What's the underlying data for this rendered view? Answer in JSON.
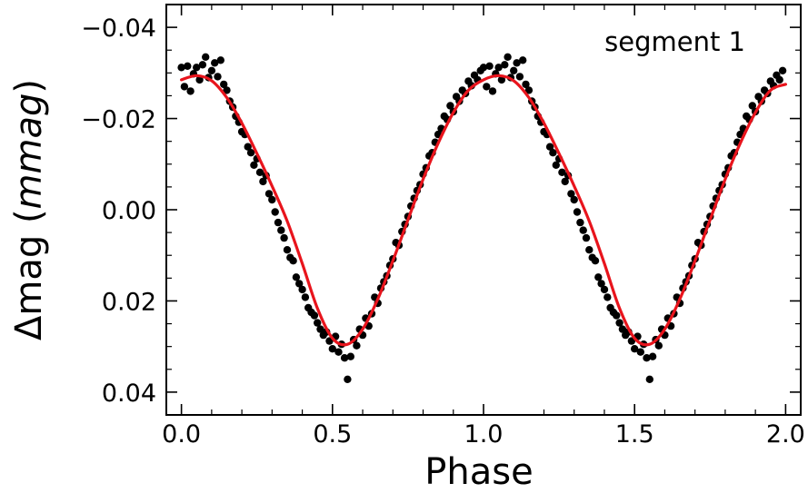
{
  "chart_data": {
    "type": "scatter",
    "xlabel": "Phase",
    "ylabel_prefix": "Δmag (",
    "ylabel_unit": "mmag",
    "ylabel_suffix": ")",
    "annotation": "segment 1",
    "xlim": [
      -0.05,
      2.05
    ],
    "ylim": [
      0.045,
      -0.045
    ],
    "y_inverted": true,
    "grid": false,
    "x_ticks": [
      0.0,
      0.5,
      1.0,
      1.5,
      2.0
    ],
    "x_tick_labels": [
      "0.0",
      "0.5",
      "1.0",
      "1.5",
      "2.0"
    ],
    "y_ticks": [
      -0.04,
      -0.02,
      0.0,
      0.02,
      0.04
    ],
    "y_tick_labels": [
      "−0.04",
      "−0.02",
      "0.00",
      "0.02",
      "0.04"
    ],
    "series": [
      {
        "kind": "points",
        "color": "#000000",
        "points": [
          [
            0.0,
            -0.0312
          ],
          [
            0.01,
            -0.027
          ],
          [
            0.02,
            -0.0315
          ],
          [
            0.03,
            -0.026
          ],
          [
            0.04,
            -0.0298
          ],
          [
            0.05,
            -0.0312
          ],
          [
            0.06,
            -0.0285
          ],
          [
            0.07,
            -0.0318
          ],
          [
            0.08,
            -0.0335
          ],
          [
            0.09,
            -0.029
          ],
          [
            0.1,
            -0.0305
          ],
          [
            0.11,
            -0.0322
          ],
          [
            0.12,
            -0.0292
          ],
          [
            0.13,
            -0.0328
          ],
          [
            0.14,
            -0.0275
          ],
          [
            0.15,
            -0.0262
          ],
          [
            0.16,
            -0.0238
          ],
          [
            0.17,
            -0.0225
          ],
          [
            0.18,
            -0.0205
          ],
          [
            0.19,
            -0.0192
          ],
          [
            0.2,
            -0.0171
          ],
          [
            0.21,
            -0.0165
          ],
          [
            0.22,
            -0.0138
          ],
          [
            0.23,
            -0.0125
          ],
          [
            0.24,
            -0.0098
          ],
          [
            0.25,
            -0.0112
          ],
          [
            0.26,
            -0.0082
          ],
          [
            0.27,
            -0.0062
          ],
          [
            0.28,
            -0.0075
          ],
          [
            0.29,
            -0.0035
          ],
          [
            0.3,
            -0.0022
          ],
          [
            0.31,
            0.0005
          ],
          [
            0.32,
            0.0028
          ],
          [
            0.33,
            0.0045
          ],
          [
            0.34,
            0.0062
          ],
          [
            0.35,
            0.0088
          ],
          [
            0.36,
            0.0105
          ],
          [
            0.37,
            0.0112
          ],
          [
            0.38,
            0.0148
          ],
          [
            0.39,
            0.0162
          ],
          [
            0.4,
            0.0175
          ],
          [
            0.41,
            0.0192
          ],
          [
            0.42,
            0.0215
          ],
          [
            0.43,
            0.0225
          ],
          [
            0.44,
            0.0232
          ],
          [
            0.45,
            0.0248
          ],
          [
            0.46,
            0.0262
          ],
          [
            0.47,
            0.0275
          ],
          [
            0.48,
            0.0268
          ],
          [
            0.49,
            0.0288
          ],
          [
            0.5,
            0.0305
          ],
          [
            0.51,
            0.0278
          ],
          [
            0.52,
            0.0312
          ],
          [
            0.53,
            0.0295
          ],
          [
            0.54,
            0.0325
          ],
          [
            0.55,
            0.0372
          ],
          [
            0.56,
            0.0322
          ],
          [
            0.57,
            0.0285
          ],
          [
            0.58,
            0.0298
          ],
          [
            0.59,
            0.0262
          ],
          [
            0.6,
            0.0275
          ],
          [
            0.61,
            0.0238
          ],
          [
            0.62,
            0.0255
          ],
          [
            0.63,
            0.0228
          ],
          [
            0.64,
            0.0192
          ],
          [
            0.65,
            0.0205
          ],
          [
            0.66,
            0.0172
          ],
          [
            0.67,
            0.0158
          ],
          [
            0.68,
            0.0145
          ],
          [
            0.69,
            0.0122
          ],
          [
            0.7,
            0.0108
          ],
          [
            0.71,
            0.0072
          ],
          [
            0.72,
            0.0078
          ],
          [
            0.73,
            0.0048
          ],
          [
            0.74,
            0.0032
          ],
          [
            0.75,
            0.0015
          ],
          [
            0.76,
            -0.0008
          ],
          [
            0.77,
            -0.0025
          ],
          [
            0.78,
            -0.0042
          ],
          [
            0.79,
            -0.0055
          ],
          [
            0.8,
            -0.0078
          ],
          [
            0.81,
            -0.0092
          ],
          [
            0.82,
            -0.0118
          ],
          [
            0.83,
            -0.0125
          ],
          [
            0.84,
            -0.0148
          ],
          [
            0.85,
            -0.0165
          ],
          [
            0.86,
            -0.0178
          ],
          [
            0.87,
            -0.0205
          ],
          [
            0.88,
            -0.0198
          ],
          [
            0.89,
            -0.0228
          ],
          [
            0.9,
            -0.0215
          ],
          [
            0.91,
            -0.0248
          ],
          [
            0.92,
            -0.0238
          ],
          [
            0.93,
            -0.0262
          ],
          [
            0.94,
            -0.0255
          ],
          [
            0.95,
            -0.0282
          ],
          [
            0.96,
            -0.0272
          ],
          [
            0.97,
            -0.0295
          ],
          [
            0.98,
            -0.0285
          ],
          [
            0.99,
            -0.0305
          ],
          [
            1.0,
            -0.0312
          ],
          [
            1.01,
            -0.027
          ],
          [
            1.02,
            -0.0315
          ],
          [
            1.03,
            -0.026
          ],
          [
            1.04,
            -0.0298
          ],
          [
            1.05,
            -0.0312
          ],
          [
            1.06,
            -0.0285
          ],
          [
            1.07,
            -0.0318
          ],
          [
            1.08,
            -0.0335
          ],
          [
            1.09,
            -0.029
          ],
          [
            1.1,
            -0.0305
          ],
          [
            1.11,
            -0.0322
          ],
          [
            1.12,
            -0.0292
          ],
          [
            1.13,
            -0.0328
          ],
          [
            1.14,
            -0.0275
          ],
          [
            1.15,
            -0.0262
          ],
          [
            1.16,
            -0.0238
          ],
          [
            1.17,
            -0.0225
          ],
          [
            1.18,
            -0.0205
          ],
          [
            1.19,
            -0.0192
          ],
          [
            1.2,
            -0.0171
          ],
          [
            1.21,
            -0.0165
          ],
          [
            1.22,
            -0.0138
          ],
          [
            1.23,
            -0.0125
          ],
          [
            1.24,
            -0.0098
          ],
          [
            1.25,
            -0.0112
          ],
          [
            1.26,
            -0.0082
          ],
          [
            1.27,
            -0.0062
          ],
          [
            1.28,
            -0.0075
          ],
          [
            1.29,
            -0.0035
          ],
          [
            1.3,
            -0.0022
          ],
          [
            1.31,
            0.0005
          ],
          [
            1.32,
            0.0028
          ],
          [
            1.33,
            0.0045
          ],
          [
            1.34,
            0.0062
          ],
          [
            1.35,
            0.0088
          ],
          [
            1.36,
            0.0105
          ],
          [
            1.37,
            0.0112
          ],
          [
            1.38,
            0.0148
          ],
          [
            1.39,
            0.0162
          ],
          [
            1.4,
            0.0175
          ],
          [
            1.41,
            0.0192
          ],
          [
            1.42,
            0.0215
          ],
          [
            1.43,
            0.0225
          ],
          [
            1.44,
            0.0232
          ],
          [
            1.45,
            0.0248
          ],
          [
            1.46,
            0.0262
          ],
          [
            1.47,
            0.0275
          ],
          [
            1.48,
            0.0268
          ],
          [
            1.49,
            0.0288
          ],
          [
            1.5,
            0.0305
          ],
          [
            1.51,
            0.0278
          ],
          [
            1.52,
            0.0312
          ],
          [
            1.53,
            0.0295
          ],
          [
            1.54,
            0.0325
          ],
          [
            1.55,
            0.0372
          ],
          [
            1.56,
            0.0322
          ],
          [
            1.57,
            0.0285
          ],
          [
            1.58,
            0.0298
          ],
          [
            1.59,
            0.0262
          ],
          [
            1.6,
            0.0275
          ],
          [
            1.61,
            0.0238
          ],
          [
            1.62,
            0.0255
          ],
          [
            1.63,
            0.0228
          ],
          [
            1.64,
            0.0192
          ],
          [
            1.65,
            0.0205
          ],
          [
            1.66,
            0.0172
          ],
          [
            1.67,
            0.0158
          ],
          [
            1.68,
            0.0145
          ],
          [
            1.69,
            0.0122
          ],
          [
            1.7,
            0.0108
          ],
          [
            1.71,
            0.0072
          ],
          [
            1.72,
            0.0078
          ],
          [
            1.73,
            0.0048
          ],
          [
            1.74,
            0.0032
          ],
          [
            1.75,
            0.0015
          ],
          [
            1.76,
            -0.0008
          ],
          [
            1.77,
            -0.0025
          ],
          [
            1.78,
            -0.0042
          ],
          [
            1.79,
            -0.0055
          ],
          [
            1.8,
            -0.0078
          ],
          [
            1.81,
            -0.0092
          ],
          [
            1.82,
            -0.0118
          ],
          [
            1.83,
            -0.0125
          ],
          [
            1.84,
            -0.0148
          ],
          [
            1.85,
            -0.0165
          ],
          [
            1.86,
            -0.0178
          ],
          [
            1.87,
            -0.0205
          ],
          [
            1.88,
            -0.0198
          ],
          [
            1.89,
            -0.0228
          ],
          [
            1.9,
            -0.0215
          ],
          [
            1.91,
            -0.0248
          ],
          [
            1.92,
            -0.0238
          ],
          [
            1.93,
            -0.0262
          ],
          [
            1.94,
            -0.0255
          ],
          [
            1.95,
            -0.0282
          ],
          [
            1.96,
            -0.0272
          ],
          [
            1.97,
            -0.0295
          ],
          [
            1.98,
            -0.0285
          ],
          [
            1.99,
            -0.0305
          ]
        ]
      },
      {
        "kind": "line",
        "color": "#e8141c",
        "points": [
          [
            0.0,
            -0.0285
          ],
          [
            0.05,
            -0.0294
          ],
          [
            0.1,
            -0.0283
          ],
          [
            0.15,
            -0.0246
          ],
          [
            0.2,
            -0.019
          ],
          [
            0.25,
            -0.0123
          ],
          [
            0.3,
            -0.0052
          ],
          [
            0.35,
            0.0025
          ],
          [
            0.4,
            0.0118
          ],
          [
            0.45,
            0.0216
          ],
          [
            0.5,
            0.0282
          ],
          [
            0.55,
            0.0295
          ],
          [
            0.6,
            0.0262
          ],
          [
            0.65,
            0.0196
          ],
          [
            0.7,
            0.0112
          ],
          [
            0.75,
            0.0022
          ],
          [
            0.8,
            -0.0067
          ],
          [
            0.85,
            -0.0146
          ],
          [
            0.9,
            -0.0213
          ],
          [
            0.95,
            -0.0262
          ],
          [
            1.0,
            -0.0285
          ],
          [
            1.05,
            -0.0294
          ],
          [
            1.1,
            -0.0283
          ],
          [
            1.15,
            -0.0246
          ],
          [
            1.2,
            -0.019
          ],
          [
            1.25,
            -0.0123
          ],
          [
            1.3,
            -0.0052
          ],
          [
            1.35,
            0.0025
          ],
          [
            1.4,
            0.0118
          ],
          [
            1.45,
            0.0216
          ],
          [
            1.5,
            0.0282
          ],
          [
            1.55,
            0.0295
          ],
          [
            1.6,
            0.0262
          ],
          [
            1.65,
            0.0196
          ],
          [
            1.7,
            0.0112
          ],
          [
            1.75,
            0.0022
          ],
          [
            1.8,
            -0.0067
          ],
          [
            1.85,
            -0.0146
          ],
          [
            1.9,
            -0.0213
          ],
          [
            1.95,
            -0.0262
          ],
          [
            2.0,
            -0.0275
          ]
        ]
      }
    ]
  }
}
